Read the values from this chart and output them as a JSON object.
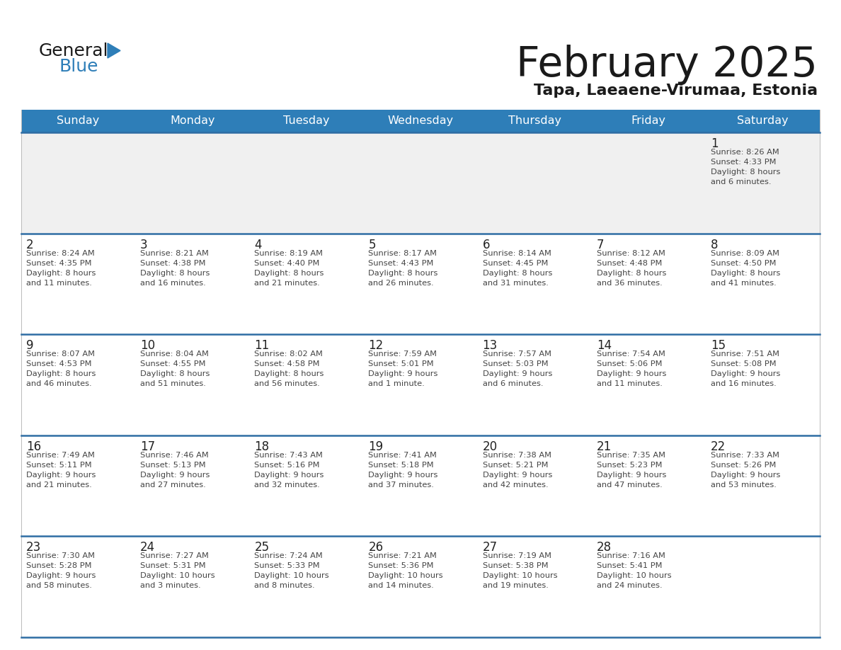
{
  "title": "February 2025",
  "subtitle": "Tapa, Laeaene-Virumaa, Estonia",
  "header_bg": "#2E7EB8",
  "header_text": "#FFFFFF",
  "day_names": [
    "Sunday",
    "Monday",
    "Tuesday",
    "Wednesday",
    "Thursday",
    "Friday",
    "Saturday"
  ],
  "row_bg_light": "#F0F0F0",
  "row_bg_white": "#FFFFFF",
  "separator_color": "#2E6DA4",
  "cell_text_color": "#444444",
  "day_number_color": "#222222",
  "calendar_data": [
    [
      {
        "day": "",
        "sunrise": "",
        "sunset": "",
        "daylight": ""
      },
      {
        "day": "",
        "sunrise": "",
        "sunset": "",
        "daylight": ""
      },
      {
        "day": "",
        "sunrise": "",
        "sunset": "",
        "daylight": ""
      },
      {
        "day": "",
        "sunrise": "",
        "sunset": "",
        "daylight": ""
      },
      {
        "day": "",
        "sunrise": "",
        "sunset": "",
        "daylight": ""
      },
      {
        "day": "",
        "sunrise": "",
        "sunset": "",
        "daylight": ""
      },
      {
        "day": "1",
        "sunrise": "8:26 AM",
        "sunset": "4:33 PM",
        "daylight": "8 hours\nand 6 minutes."
      }
    ],
    [
      {
        "day": "2",
        "sunrise": "8:24 AM",
        "sunset": "4:35 PM",
        "daylight": "8 hours\nand 11 minutes."
      },
      {
        "day": "3",
        "sunrise": "8:21 AM",
        "sunset": "4:38 PM",
        "daylight": "8 hours\nand 16 minutes."
      },
      {
        "day": "4",
        "sunrise": "8:19 AM",
        "sunset": "4:40 PM",
        "daylight": "8 hours\nand 21 minutes."
      },
      {
        "day": "5",
        "sunrise": "8:17 AM",
        "sunset": "4:43 PM",
        "daylight": "8 hours\nand 26 minutes."
      },
      {
        "day": "6",
        "sunrise": "8:14 AM",
        "sunset": "4:45 PM",
        "daylight": "8 hours\nand 31 minutes."
      },
      {
        "day": "7",
        "sunrise": "8:12 AM",
        "sunset": "4:48 PM",
        "daylight": "8 hours\nand 36 minutes."
      },
      {
        "day": "8",
        "sunrise": "8:09 AM",
        "sunset": "4:50 PM",
        "daylight": "8 hours\nand 41 minutes."
      }
    ],
    [
      {
        "day": "9",
        "sunrise": "8:07 AM",
        "sunset": "4:53 PM",
        "daylight": "8 hours\nand 46 minutes."
      },
      {
        "day": "10",
        "sunrise": "8:04 AM",
        "sunset": "4:55 PM",
        "daylight": "8 hours\nand 51 minutes."
      },
      {
        "day": "11",
        "sunrise": "8:02 AM",
        "sunset": "4:58 PM",
        "daylight": "8 hours\nand 56 minutes."
      },
      {
        "day": "12",
        "sunrise": "7:59 AM",
        "sunset": "5:01 PM",
        "daylight": "9 hours\nand 1 minute."
      },
      {
        "day": "13",
        "sunrise": "7:57 AM",
        "sunset": "5:03 PM",
        "daylight": "9 hours\nand 6 minutes."
      },
      {
        "day": "14",
        "sunrise": "7:54 AM",
        "sunset": "5:06 PM",
        "daylight": "9 hours\nand 11 minutes."
      },
      {
        "day": "15",
        "sunrise": "7:51 AM",
        "sunset": "5:08 PM",
        "daylight": "9 hours\nand 16 minutes."
      }
    ],
    [
      {
        "day": "16",
        "sunrise": "7:49 AM",
        "sunset": "5:11 PM",
        "daylight": "9 hours\nand 21 minutes."
      },
      {
        "day": "17",
        "sunrise": "7:46 AM",
        "sunset": "5:13 PM",
        "daylight": "9 hours\nand 27 minutes."
      },
      {
        "day": "18",
        "sunrise": "7:43 AM",
        "sunset": "5:16 PM",
        "daylight": "9 hours\nand 32 minutes."
      },
      {
        "day": "19",
        "sunrise": "7:41 AM",
        "sunset": "5:18 PM",
        "daylight": "9 hours\nand 37 minutes."
      },
      {
        "day": "20",
        "sunrise": "7:38 AM",
        "sunset": "5:21 PM",
        "daylight": "9 hours\nand 42 minutes."
      },
      {
        "day": "21",
        "sunrise": "7:35 AM",
        "sunset": "5:23 PM",
        "daylight": "9 hours\nand 47 minutes."
      },
      {
        "day": "22",
        "sunrise": "7:33 AM",
        "sunset": "5:26 PM",
        "daylight": "9 hours\nand 53 minutes."
      }
    ],
    [
      {
        "day": "23",
        "sunrise": "7:30 AM",
        "sunset": "5:28 PM",
        "daylight": "9 hours\nand 58 minutes."
      },
      {
        "day": "24",
        "sunrise": "7:27 AM",
        "sunset": "5:31 PM",
        "daylight": "10 hours\nand 3 minutes."
      },
      {
        "day": "25",
        "sunrise": "7:24 AM",
        "sunset": "5:33 PM",
        "daylight": "10 hours\nand 8 minutes."
      },
      {
        "day": "26",
        "sunrise": "7:21 AM",
        "sunset": "5:36 PM",
        "daylight": "10 hours\nand 14 minutes."
      },
      {
        "day": "27",
        "sunrise": "7:19 AM",
        "sunset": "5:38 PM",
        "daylight": "10 hours\nand 19 minutes."
      },
      {
        "day": "28",
        "sunrise": "7:16 AM",
        "sunset": "5:41 PM",
        "daylight": "10 hours\nand 24 minutes."
      },
      {
        "day": "",
        "sunrise": "",
        "sunset": "",
        "daylight": ""
      }
    ]
  ]
}
